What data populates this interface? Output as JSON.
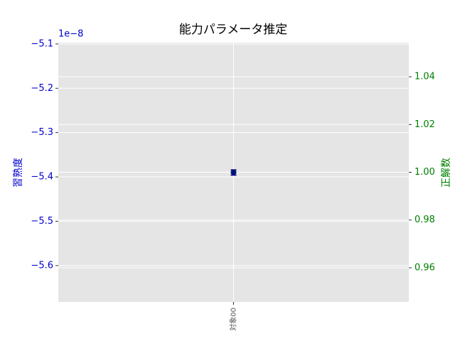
{
  "chart_data": {
    "type": "errorbar",
    "title": "能力パラメータ推定",
    "ylabel": "習熟度",
    "y2label": "正解数",
    "y_offset_label": "1e−8",
    "categories": [
      "対象00"
    ],
    "series": [
      {
        "color": "#00008b",
        "values": [
          -5.39
        ],
        "errors": [
          0.006
        ]
      },
      {
        "color": "#008000",
        "values": [
          1.0
        ],
        "axis": "y2"
      }
    ],
    "ylim": [
      -5.682,
      -5.097
    ],
    "yticks": [
      {
        "value": -5.6,
        "label": "−5.6"
      },
      {
        "value": -5.5,
        "label": "−5.5"
      },
      {
        "value": -5.4,
        "label": "−5.4"
      },
      {
        "value": -5.3,
        "label": "−5.3"
      },
      {
        "value": -5.2,
        "label": "−5.2"
      },
      {
        "value": -5.1,
        "label": "−5.1"
      }
    ],
    "y2lim": [
      0.9457,
      1.0543
    ],
    "y2ticks": [
      {
        "value": 0.96,
        "label": "0.96"
      },
      {
        "value": 0.98,
        "label": "0.98"
      },
      {
        "value": 1.0,
        "label": "1.00"
      },
      {
        "value": 1.02,
        "label": "1.02"
      },
      {
        "value": 1.04,
        "label": "1.04"
      }
    ],
    "ycolor": "#0000cc",
    "y2color": "#008000",
    "grid": true
  }
}
